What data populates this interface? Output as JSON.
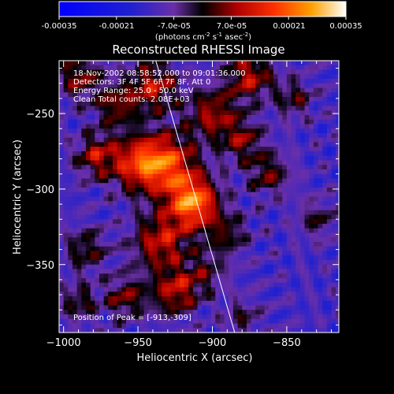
{
  "colorbar": {
    "ticks": [
      "-0.00035",
      "-0.00021",
      "-7.0e-05",
      "7.0e-05",
      "0.00021",
      "0.00035"
    ],
    "units_text": "(photons cm",
    "units_sup1": "-2",
    "units_mid1": " s",
    "units_sup2": "-1",
    "units_mid2": " asec",
    "units_sup3": "-2",
    "units_end": ")"
  },
  "chart_data": {
    "type": "heatmap",
    "title": "Reconstructed RHESSI Image",
    "xlabel": "Heliocentric X (arcsec)",
    "ylabel": "Heliocentric Y (arcsec)",
    "xlim": [
      -1003,
      -815
    ],
    "ylim": [
      -395,
      -215
    ],
    "x_ticks": [
      -1000,
      -950,
      -900,
      -850
    ],
    "y_ticks": [
      -250,
      -300,
      -350
    ],
    "x_tick_labels": [
      "−1000",
      "−950",
      "−900",
      "−850"
    ],
    "y_tick_labels": [
      "−250",
      "−300",
      "−350"
    ],
    "color_range": [
      -0.00035,
      0.00035
    ],
    "annotations": [
      "18-Nov-2002 08:58:52.000 to 09:01:36.000",
      "Detectors: 3F 4F 5F 6F 7F 8F, Att 0",
      "Energy Range: 25.0 - 50.0 keV",
      "Clean    Total counts: 2.08E+03"
    ],
    "peak_label": "Position of Peak = [-913,-309]",
    "peak": [
      -913,
      -309
    ],
    "limb_line": [
      [
        -938,
        -215
      ],
      [
        -885,
        -395
      ]
    ],
    "blobs": [
      {
        "x": -913,
        "y": -309,
        "amp": 0.00035,
        "r": 12
      },
      {
        "x": -930,
        "y": -283,
        "amp": 0.00026,
        "r": 14
      },
      {
        "x": -950,
        "y": -283,
        "amp": 0.00023,
        "r": 13
      },
      {
        "x": -940,
        "y": -232,
        "amp": 0.00021,
        "r": 12
      },
      {
        "x": -978,
        "y": -278,
        "amp": 0.00019,
        "r": 10
      },
      {
        "x": -990,
        "y": -225,
        "amp": 0.00017,
        "r": 11
      },
      {
        "x": -965,
        "y": -245,
        "amp": 0.00016,
        "r": 10
      },
      {
        "x": -935,
        "y": -335,
        "amp": 0.00022,
        "r": 13
      },
      {
        "x": -925,
        "y": -368,
        "amp": 0.00021,
        "r": 11
      },
      {
        "x": -958,
        "y": -372,
        "amp": 0.00016,
        "r": 10
      },
      {
        "x": -985,
        "y": -340,
        "amp": 0.00014,
        "r": 10
      },
      {
        "x": -990,
        "y": -375,
        "amp": 0.00013,
        "r": 9
      },
      {
        "x": -900,
        "y": -250,
        "amp": 0.00019,
        "r": 12
      },
      {
        "x": -875,
        "y": -225,
        "amp": 0.00021,
        "r": 11
      },
      {
        "x": -880,
        "y": -268,
        "amp": 0.00016,
        "r": 10
      },
      {
        "x": -862,
        "y": -290,
        "amp": 0.00015,
        "r": 10
      },
      {
        "x": -890,
        "y": -330,
        "amp": 0.00013,
        "r": 10
      },
      {
        "x": -905,
        "y": -355,
        "amp": 0.00011,
        "r": 10
      },
      {
        "x": -845,
        "y": -240,
        "amp": 0.00013,
        "r": 9
      },
      {
        "x": -830,
        "y": -320,
        "amp": 0.00011,
        "r": 9
      },
      {
        "x": -880,
        "y": -385,
        "amp": 0.0001,
        "r": 9
      }
    ]
  }
}
